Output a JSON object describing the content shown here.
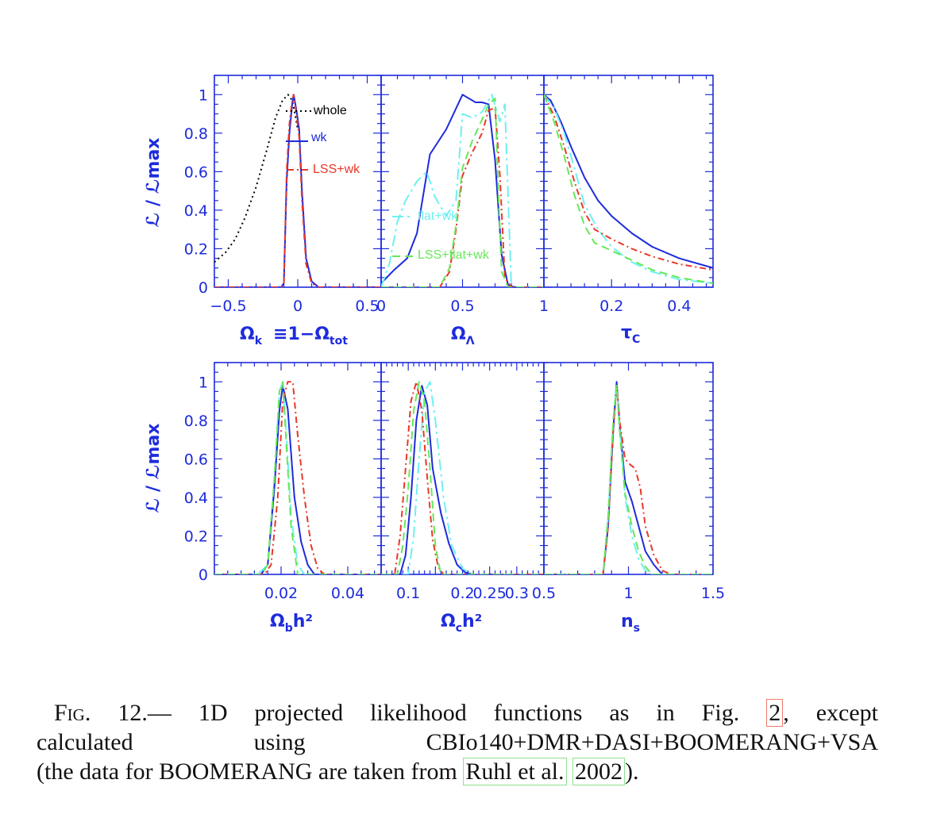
{
  "figure": {
    "ylabel": "ℒ / ℒmax",
    "legend_top_left": [
      {
        "label": "whole",
        "color": "#000000",
        "style": "dotted"
      },
      {
        "label": "wk",
        "color": "#1d2bdc",
        "style": "solid"
      },
      {
        "label": "LSS+wk",
        "color": "#e8382a",
        "style": "dashdot"
      }
    ],
    "legend_top_mid": [
      {
        "label": "flat+wk",
        "color": "#6ff0f0",
        "style": "longdashdot"
      },
      {
        "label": "LSS+flat+wk",
        "color": "#66e85a",
        "style": "dashed"
      }
    ],
    "yticks": [
      "0",
      "0.2",
      "0.4",
      "0.6",
      "0.8",
      "1"
    ],
    "xlabels": {
      "omk_main": "Ω",
      "omk_sub": "k",
      "omk_rest": "≡1−Ω",
      "omk_sub2": "tot",
      "oml_main": "Ω",
      "oml_sub": "Λ",
      "tau_main": "τ",
      "tau_sub": "C",
      "obh_main": "Ω",
      "obh_sub": "b",
      "obh_rest": "h²",
      "och_main": "Ω",
      "och_sub": "c",
      "och_rest": "h²",
      "ns_main": "n",
      "ns_sub": "s"
    }
  },
  "chart_data": [
    {
      "id": "omega_k",
      "type": "line",
      "xlim": [
        -0.6,
        0.6
      ],
      "ylim": [
        0,
        1.1
      ],
      "xticks": [
        -0.5,
        0,
        0.5
      ],
      "xticklabels": [
        "−0.5",
        "0",
        "0.5"
      ],
      "series": [
        {
          "name": "whole",
          "color": "#000000",
          "dash": "2,4",
          "x": [
            -0.6,
            -0.52,
            -0.45,
            -0.38,
            -0.3,
            -0.22,
            -0.16,
            -0.11,
            -0.07,
            -0.04,
            -0.02,
            0.0
          ],
          "y": [
            0.13,
            0.18,
            0.25,
            0.36,
            0.52,
            0.72,
            0.88,
            0.97,
            1.0,
            0.97,
            0.9,
            0.82
          ]
        },
        {
          "name": "wk",
          "color": "#1d2bdc",
          "dash": "",
          "x": [
            -0.6,
            -0.12,
            -0.1,
            -0.08,
            -0.06,
            -0.04,
            -0.03,
            -0.01,
            0.01,
            0.03,
            0.06,
            0.1,
            0.15,
            0.6
          ],
          "y": [
            0,
            0,
            0.02,
            0.55,
            0.8,
            0.95,
            1.0,
            0.92,
            0.82,
            0.5,
            0.15,
            0.03,
            0,
            0
          ]
        },
        {
          "name": "LSS+wk",
          "color": "#e8382a",
          "dash": "8,4,2,4",
          "x": [
            -0.6,
            -0.12,
            -0.1,
            -0.08,
            -0.06,
            -0.04,
            -0.03,
            -0.01,
            0.01,
            0.03,
            0.06,
            0.1,
            0.15,
            0.6
          ],
          "y": [
            0,
            0,
            0.02,
            0.6,
            0.85,
            0.97,
            1.0,
            0.9,
            0.78,
            0.45,
            0.12,
            0.02,
            0,
            0
          ]
        }
      ]
    },
    {
      "id": "omega_lambda",
      "type": "line",
      "xlim": [
        0,
        1
      ],
      "ylim": [
        0,
        1.1
      ],
      "xticks": [
        0,
        0.5,
        1
      ],
      "xticklabels": [
        "0",
        "0.5",
        "1"
      ],
      "series": [
        {
          "name": "wk",
          "color": "#1d2bdc",
          "dash": "",
          "x": [
            0,
            0.08,
            0.16,
            0.22,
            0.3,
            0.4,
            0.5,
            0.58,
            0.62,
            0.66,
            0.7,
            0.74,
            0.78,
            0.82,
            1.0
          ],
          "y": [
            0.02,
            0.09,
            0.15,
            0.28,
            0.69,
            0.82,
            1.0,
            0.96,
            0.96,
            0.95,
            0.66,
            0.17,
            0.01,
            0,
            0
          ]
        },
        {
          "name": "flat+wk",
          "color": "#6ff0f0",
          "dash": "14,5,3,5",
          "x": [
            0,
            0.05,
            0.1,
            0.15,
            0.22,
            0.28,
            0.33,
            0.4,
            0.46,
            0.5,
            0.56,
            0.62,
            0.68,
            0.73,
            0.76,
            0.8,
            1.0
          ],
          "y": [
            0,
            0.12,
            0.34,
            0.45,
            0.55,
            0.6,
            0.47,
            0.37,
            0.45,
            0.9,
            0.88,
            0.91,
            1.0,
            0.86,
            0.95,
            0,
            0
          ]
        },
        {
          "name": "LSS+wk",
          "color": "#e8382a",
          "dash": "8,4,2,4",
          "x": [
            0,
            0.36,
            0.42,
            0.46,
            0.5,
            0.56,
            0.62,
            0.66,
            0.7,
            0.73,
            0.76,
            0.8,
            1.0
          ],
          "y": [
            0,
            0,
            0.08,
            0.3,
            0.58,
            0.7,
            0.8,
            0.92,
            0.93,
            0.58,
            0.05,
            0,
            0
          ]
        },
        {
          "name": "LSS+flat+wk",
          "color": "#66e85a",
          "dash": "10,6",
          "x": [
            0,
            0.36,
            0.42,
            0.46,
            0.5,
            0.56,
            0.62,
            0.66,
            0.7,
            0.72,
            0.74,
            0.78,
            1.0
          ],
          "y": [
            0,
            0,
            0.1,
            0.32,
            0.62,
            0.76,
            0.87,
            0.95,
            0.98,
            0.5,
            0.08,
            0,
            0
          ]
        }
      ]
    },
    {
      "id": "tau_c",
      "type": "line",
      "xlim": [
        0,
        0.5
      ],
      "ylim": [
        0,
        1.1
      ],
      "xticks": [
        0.2,
        0.4
      ],
      "xticklabels": [
        "0.2",
        "0.4"
      ],
      "series": [
        {
          "name": "wk",
          "color": "#1d2bdc",
          "dash": "",
          "x": [
            0,
            0.02,
            0.05,
            0.08,
            0.12,
            0.16,
            0.2,
            0.26,
            0.32,
            0.4,
            0.5
          ],
          "y": [
            1.0,
            0.97,
            0.86,
            0.73,
            0.57,
            0.45,
            0.37,
            0.28,
            0.21,
            0.15,
            0.1
          ]
        },
        {
          "name": "flat+wk",
          "color": "#6ff0f0",
          "dash": "14,5,3,5",
          "x": [
            0,
            0.03,
            0.06,
            0.09,
            0.12,
            0.16,
            0.2,
            0.26,
            0.32,
            0.4,
            0.5
          ],
          "y": [
            1.0,
            0.93,
            0.8,
            0.62,
            0.43,
            0.3,
            0.21,
            0.13,
            0.08,
            0.04,
            0.02
          ]
        },
        {
          "name": "LSS+wk",
          "color": "#e8382a",
          "dash": "8,4,2,4",
          "x": [
            0,
            0.03,
            0.06,
            0.09,
            0.12,
            0.15,
            0.2,
            0.26,
            0.32,
            0.4,
            0.5
          ],
          "y": [
            1.0,
            0.89,
            0.73,
            0.55,
            0.39,
            0.3,
            0.25,
            0.2,
            0.16,
            0.12,
            0.09
          ]
        },
        {
          "name": "LSS+flat+wk",
          "color": "#66e85a",
          "dash": "10,6",
          "x": [
            0,
            0.03,
            0.06,
            0.09,
            0.12,
            0.15,
            0.2,
            0.26,
            0.32,
            0.4,
            0.5
          ],
          "y": [
            1.0,
            0.86,
            0.68,
            0.48,
            0.32,
            0.23,
            0.19,
            0.14,
            0.09,
            0.05,
            0.02
          ]
        }
      ]
    },
    {
      "id": "omega_b_h2",
      "type": "line",
      "xlim": [
        0.0,
        0.05
      ],
      "ylim": [
        0,
        1.1
      ],
      "xticks": [
        0.02,
        0.04
      ],
      "xticklabels": [
        "0.02",
        "0.04"
      ],
      "series": [
        {
          "name": "flat+wk",
          "color": "#6ff0f0",
          "dash": "14,5,3,5",
          "x": [
            0,
            0.013,
            0.016,
            0.018,
            0.0195,
            0.0205,
            0.0215,
            0.023,
            0.025,
            0.027,
            0.05
          ],
          "y": [
            0,
            0,
            0.05,
            0.5,
            0.95,
            1.0,
            0.75,
            0.3,
            0.05,
            0,
            0
          ]
        },
        {
          "name": "wk",
          "color": "#1d2bdc",
          "dash": "",
          "x": [
            0,
            0.014,
            0.016,
            0.018,
            0.0195,
            0.0205,
            0.022,
            0.024,
            0.026,
            0.028,
            0.03,
            0.05
          ],
          "y": [
            0,
            0,
            0.05,
            0.45,
            0.85,
            0.98,
            0.86,
            0.4,
            0.17,
            0.05,
            0,
            0
          ]
        },
        {
          "name": "LSS+wk",
          "color": "#e8382a",
          "dash": "8,4,2,4",
          "x": [
            0,
            0.015,
            0.017,
            0.019,
            0.0205,
            0.022,
            0.0235,
            0.025,
            0.027,
            0.029,
            0.031,
            0.033,
            0.05
          ],
          "y": [
            0,
            0,
            0.05,
            0.4,
            0.9,
            1.0,
            1.0,
            0.72,
            0.4,
            0.15,
            0.03,
            0,
            0
          ]
        },
        {
          "name": "LSS+flat+wk",
          "color": "#66e85a",
          "dash": "10,6",
          "x": [
            0,
            0.014,
            0.016,
            0.018,
            0.0195,
            0.0205,
            0.0215,
            0.023,
            0.025,
            0.05
          ],
          "y": [
            0,
            0,
            0.05,
            0.5,
            0.95,
            1.0,
            0.7,
            0.25,
            0,
            0
          ]
        }
      ]
    },
    {
      "id": "omega_c_h2",
      "type": "line",
      "xlim": [
        0.05,
        0.35
      ],
      "ylim": [
        0,
        1.1
      ],
      "xticks": [
        0.1,
        0.15,
        0.2,
        0.25,
        0.3
      ],
      "xticklabels": [
        "0.1",
        "",
        "0.2",
        "0.25",
        "0.3"
      ],
      "series": [
        {
          "name": "wk",
          "color": "#1d2bdc",
          "dash": "",
          "x": [
            0.05,
            0.085,
            0.095,
            0.105,
            0.115,
            0.125,
            0.135,
            0.145,
            0.16,
            0.175,
            0.19,
            0.205,
            0.22,
            0.35
          ],
          "y": [
            0,
            0,
            0.1,
            0.4,
            0.8,
            0.98,
            0.88,
            0.55,
            0.32,
            0.16,
            0.05,
            0.01,
            0,
            0
          ]
        },
        {
          "name": "flat+wk",
          "color": "#6ff0f0",
          "dash": "14,5,3,5",
          "x": [
            0.05,
            0.1,
            0.11,
            0.12,
            0.13,
            0.14,
            0.15,
            0.165,
            0.18,
            0.2,
            0.22,
            0.35
          ],
          "y": [
            0,
            0,
            0.2,
            0.6,
            0.95,
            1.0,
            0.8,
            0.4,
            0.15,
            0.03,
            0,
            0
          ]
        },
        {
          "name": "LSS+wk",
          "color": "#e8382a",
          "dash": "8,4,2,4",
          "x": [
            0.05,
            0.075,
            0.085,
            0.095,
            0.105,
            0.115,
            0.125,
            0.135,
            0.145,
            0.155,
            0.165,
            0.35
          ],
          "y": [
            0,
            0,
            0.2,
            0.55,
            0.9,
            1.0,
            0.85,
            0.5,
            0.18,
            0.04,
            0,
            0
          ]
        },
        {
          "name": "LSS+flat+wk",
          "color": "#66e85a",
          "dash": "10,6",
          "x": [
            0.05,
            0.08,
            0.09,
            0.1,
            0.11,
            0.12,
            0.13,
            0.14,
            0.15,
            0.16,
            0.35
          ],
          "y": [
            0,
            0,
            0.15,
            0.45,
            0.85,
            1.0,
            0.9,
            0.55,
            0.15,
            0,
            0
          ]
        }
      ]
    },
    {
      "id": "n_s",
      "type": "line",
      "xlim": [
        0.5,
        1.5
      ],
      "ylim": [
        0,
        1.1
      ],
      "xticks": [
        0.5,
        1,
        1.5
      ],
      "xticklabels": [
        "0.5",
        "1",
        "1.5"
      ],
      "series": [
        {
          "name": "wk",
          "color": "#1d2bdc",
          "dash": "",
          "x": [
            0.5,
            0.85,
            0.88,
            0.91,
            0.93,
            0.95,
            0.98,
            1.02,
            1.06,
            1.1,
            1.15,
            1.2,
            1.5
          ],
          "y": [
            0,
            0,
            0.25,
            0.75,
            1.0,
            0.75,
            0.48,
            0.38,
            0.25,
            0.12,
            0.05,
            0,
            0
          ]
        },
        {
          "name": "flat+wk",
          "color": "#6ff0f0",
          "dash": "14,5,3,5",
          "x": [
            0.5,
            0.85,
            0.88,
            0.91,
            0.93,
            0.95,
            0.98,
            1.02,
            1.06,
            1.1,
            1.14,
            1.5
          ],
          "y": [
            0,
            0,
            0.3,
            0.8,
            0.98,
            0.75,
            0.4,
            0.2,
            0.08,
            0.02,
            0,
            0
          ]
        },
        {
          "name": "LSS+wk",
          "color": "#e8382a",
          "dash": "8,4,2,4",
          "x": [
            0.5,
            0.85,
            0.88,
            0.91,
            0.93,
            0.95,
            0.98,
            1.01,
            1.04,
            1.07,
            1.1,
            1.15,
            1.2,
            1.25,
            1.5
          ],
          "y": [
            0,
            0,
            0.25,
            0.75,
            0.98,
            0.78,
            0.6,
            0.57,
            0.55,
            0.45,
            0.25,
            0.1,
            0.02,
            0,
            0
          ]
        },
        {
          "name": "LSS+flat+wk",
          "color": "#66e85a",
          "dash": "10,6",
          "x": [
            0.5,
            0.85,
            0.88,
            0.91,
            0.93,
            0.95,
            0.98,
            1.02,
            1.06,
            1.1,
            1.14,
            1.5
          ],
          "y": [
            0,
            0,
            0.3,
            0.8,
            0.98,
            0.72,
            0.42,
            0.25,
            0.12,
            0.04,
            0,
            0
          ]
        }
      ]
    }
  ],
  "caption": {
    "fig_label": "Fig. 12.",
    "line1_rest": "— 1D projected likelihood functions as in Fig.",
    "ref_fig": "2",
    "line1_end": ", except",
    "line2": "calculated using CBIo140+DMR+DASI+BOOMERANG+VSA",
    "line3_start": "(the data for BOOMERANG are taken from",
    "ref_author": "Ruhl et al.",
    "ref_year": "2002",
    "line3_end": ")."
  }
}
